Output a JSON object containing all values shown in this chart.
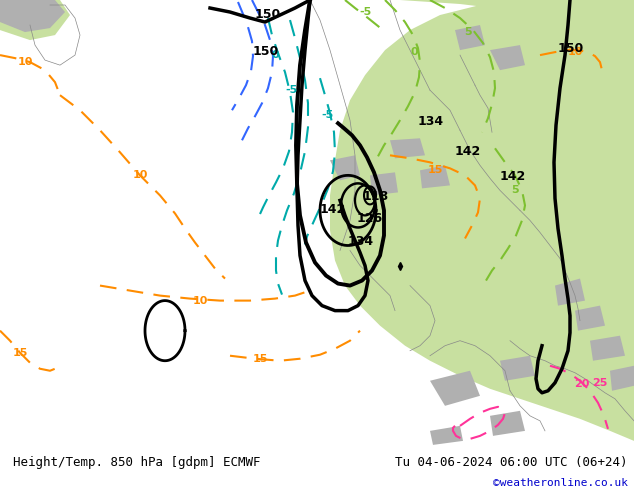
{
  "title_left": "Height/Temp. 850 hPa [gdpm] ECMWF",
  "title_right": "Tu 04-06-2024 06:00 UTC (06+24)",
  "copyright": "©weatheronline.co.uk",
  "fig_width": 6.34,
  "fig_height": 4.9,
  "dpi": 100,
  "bg_color": "#ffffff",
  "footer_bg": "#e8e8e8",
  "title_color": "#000000",
  "copyright_color": "#0000cc",
  "ocean_color": "#d8d8d8",
  "land_green": "#c8e0a0",
  "land_gray": "#b8b8b8",
  "font_sizes": {
    "title": 9,
    "copyright": 8,
    "label": 8
  }
}
